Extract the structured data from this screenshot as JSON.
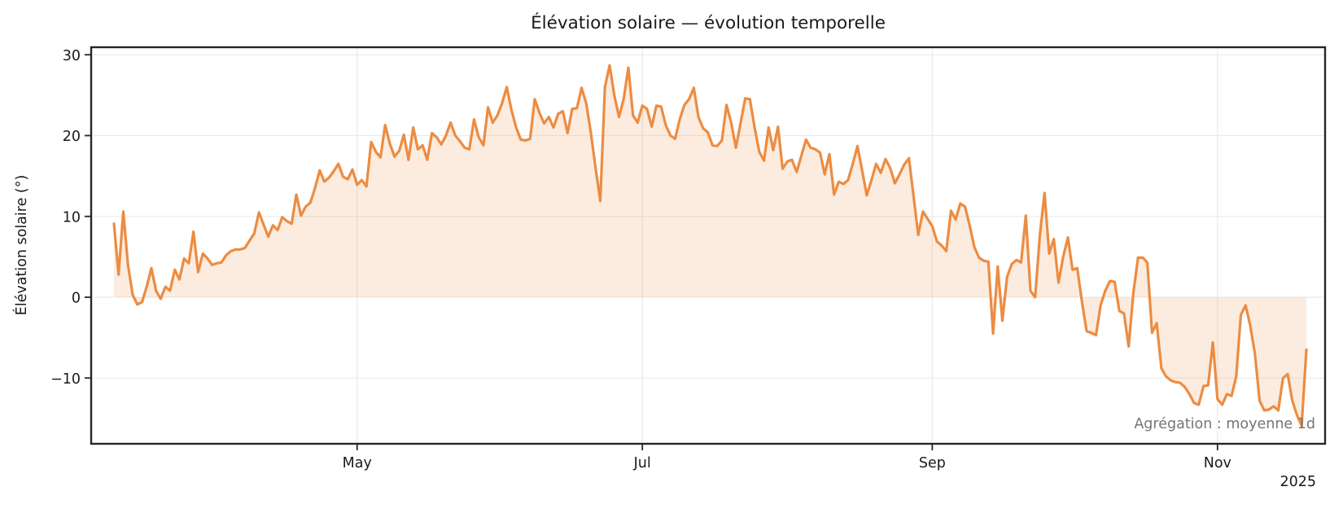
{
  "figure": {
    "title": "Élévation solaire — évolution temporelle",
    "ylabel": "Élévation solaire (°)",
    "annotation": "Agrégation : moyenne 1d",
    "year_label": "2025"
  },
  "chart_data": {
    "type": "line",
    "title": "Élévation solaire — évolution temporelle",
    "xlabel": "",
    "ylabel": "Élévation solaire (°)",
    "annotation": "Agrégation : moyenne 1d",
    "year": "2025",
    "grid": true,
    "legend": "none",
    "line_color": "#EC8C42",
    "fill_color": "rgba(236,140,66,0.17)",
    "grid_color": "#EBEBEB",
    "spine_color": "#262626",
    "annotation_color": "#757575",
    "x_unit": "days (mean per 1 day), March through November 2025",
    "x_tick_labels": [
      "May",
      "Jul",
      "Sep",
      "Nov"
    ],
    "x_tick_day_index": [
      52,
      113,
      175,
      236
    ],
    "y_ticks": [
      30,
      20,
      10,
      0,
      -10
    ],
    "y_tick_labels": [
      "30",
      "20",
      "10",
      "0",
      "−10"
    ],
    "ylim": [
      -18.2,
      30.9
    ],
    "xlim_day_index": [
      -4.9,
      259.1
    ],
    "baseline": 0,
    "values": [
      9.1,
      2.8,
      10.6,
      4.0,
      0.3,
      -0.9,
      -0.6,
      1.3,
      3.6,
      0.8,
      -0.2,
      1.3,
      0.8,
      3.4,
      2.2,
      4.8,
      4.2,
      8.1,
      3.1,
      5.4,
      4.8,
      4.0,
      4.2,
      4.3,
      5.2,
      5.7,
      5.9,
      5.9,
      6.1,
      7.0,
      7.9,
      10.5,
      9.0,
      7.5,
      8.9,
      8.3,
      9.9,
      9.4,
      9.1,
      12.7,
      10.1,
      11.2,
      11.7,
      13.5,
      15.7,
      14.3,
      14.8,
      15.6,
      16.5,
      14.9,
      14.6,
      15.8,
      13.9,
      14.5,
      13.7,
      19.2,
      18.0,
      17.3,
      21.3,
      19.0,
      17.4,
      18.1,
      20.1,
      17.0,
      21.0,
      18.3,
      18.8,
      17.0,
      20.3,
      19.8,
      18.9,
      20.0,
      21.6,
      20.0,
      19.3,
      18.5,
      18.3,
      22.0,
      19.8,
      18.8,
      23.5,
      21.6,
      22.5,
      24.0,
      26.0,
      23.2,
      21.0,
      19.5,
      19.4,
      19.6,
      24.5,
      22.8,
      21.5,
      22.3,
      21.0,
      22.7,
      23.0,
      20.3,
      23.3,
      23.4,
      25.9,
      24.0,
      20.3,
      16.0,
      11.9,
      26.0,
      28.7,
      25.0,
      22.3,
      24.5,
      28.4,
      22.5,
      21.6,
      23.7,
      23.3,
      21.1,
      23.7,
      23.6,
      21.3,
      20.0,
      19.6,
      22.0,
      23.8,
      24.5,
      25.9,
      22.3,
      20.9,
      20.4,
      18.8,
      18.7,
      19.4,
      23.8,
      21.6,
      18.5,
      21.5,
      24.6,
      24.5,
      21.0,
      18.0,
      16.9,
      21.0,
      18.2,
      21.1,
      15.9,
      16.8,
      17.0,
      15.5,
      17.5,
      19.5,
      18.5,
      18.3,
      17.9,
      15.2,
      17.7,
      12.7,
      14.3,
      14.0,
      14.5,
      16.5,
      18.7,
      15.7,
      12.6,
      14.5,
      16.5,
      15.4,
      17.1,
      16.0,
      14.1,
      15.2,
      16.4,
      17.2,
      12.5,
      7.7,
      10.6,
      9.7,
      8.8,
      6.9,
      6.4,
      5.7,
      10.7,
      9.6,
      11.6,
      11.2,
      8.9,
      6.2,
      4.9,
      4.5,
      4.4,
      -4.5,
      3.8,
      -2.9,
      2.5,
      4.1,
      4.6,
      4.3,
      10.1,
      0.8,
      0.0,
      7.6,
      12.9,
      5.4,
      7.2,
      1.8,
      5.0,
      7.4,
      3.4,
      3.6,
      -0.5,
      -4.2,
      -4.4,
      -4.7,
      -1.0,
      0.8,
      2.0,
      1.9,
      -1.7,
      -2.0,
      -6.1,
      0.5,
      4.9,
      4.9,
      4.3,
      -4.4,
      -3.2,
      -8.8,
      -9.8,
      -10.3,
      -10.5,
      -10.6,
      -11.1,
      -12.0,
      -13.1,
      -13.3,
      -11.0,
      -10.9,
      -5.6,
      -12.6,
      -13.3,
      -12.0,
      -12.2,
      -9.8,
      -2.2,
      -1.0,
      -3.5,
      -7.0,
      -12.8,
      -14.0,
      -13.9,
      -13.5,
      -14.0,
      -10.0,
      -9.5,
      -12.8,
      -14.6,
      -15.9,
      -6.5
    ]
  }
}
